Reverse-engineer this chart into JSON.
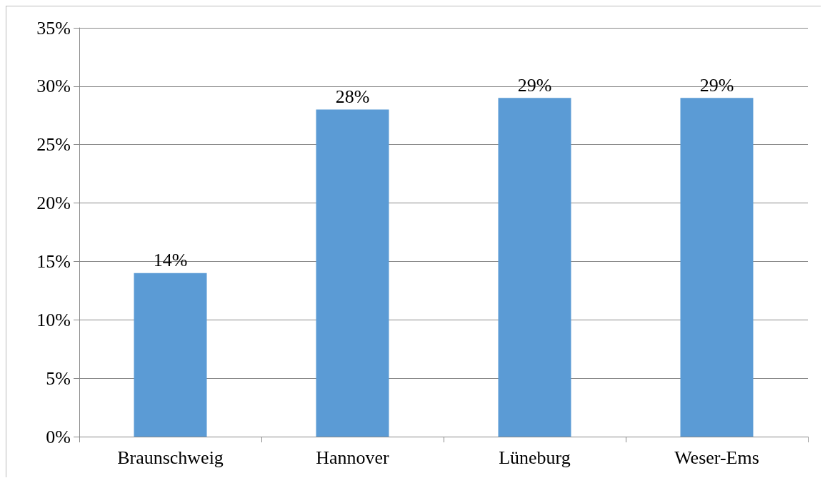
{
  "chart_data": {
    "type": "bar",
    "categories": [
      "Braunschweig",
      "Hannover",
      "Lüneburg",
      "Weser-Ems"
    ],
    "values": [
      14,
      28,
      29,
      29
    ],
    "value_labels": [
      "14%",
      "28%",
      "29%",
      "29%"
    ],
    "color": "#5b9bd5",
    "ylim": [
      0,
      35
    ],
    "yticks": [
      {
        "value": 0,
        "label": "0%"
      },
      {
        "value": 5,
        "label": "5%"
      },
      {
        "value": 10,
        "label": "10%"
      },
      {
        "value": 15,
        "label": "15%"
      },
      {
        "value": 20,
        "label": "20%"
      },
      {
        "value": 25,
        "label": "25%"
      },
      {
        "value": 30,
        "label": "30%"
      },
      {
        "value": 35,
        "label": "35%"
      }
    ],
    "grid": "y"
  }
}
